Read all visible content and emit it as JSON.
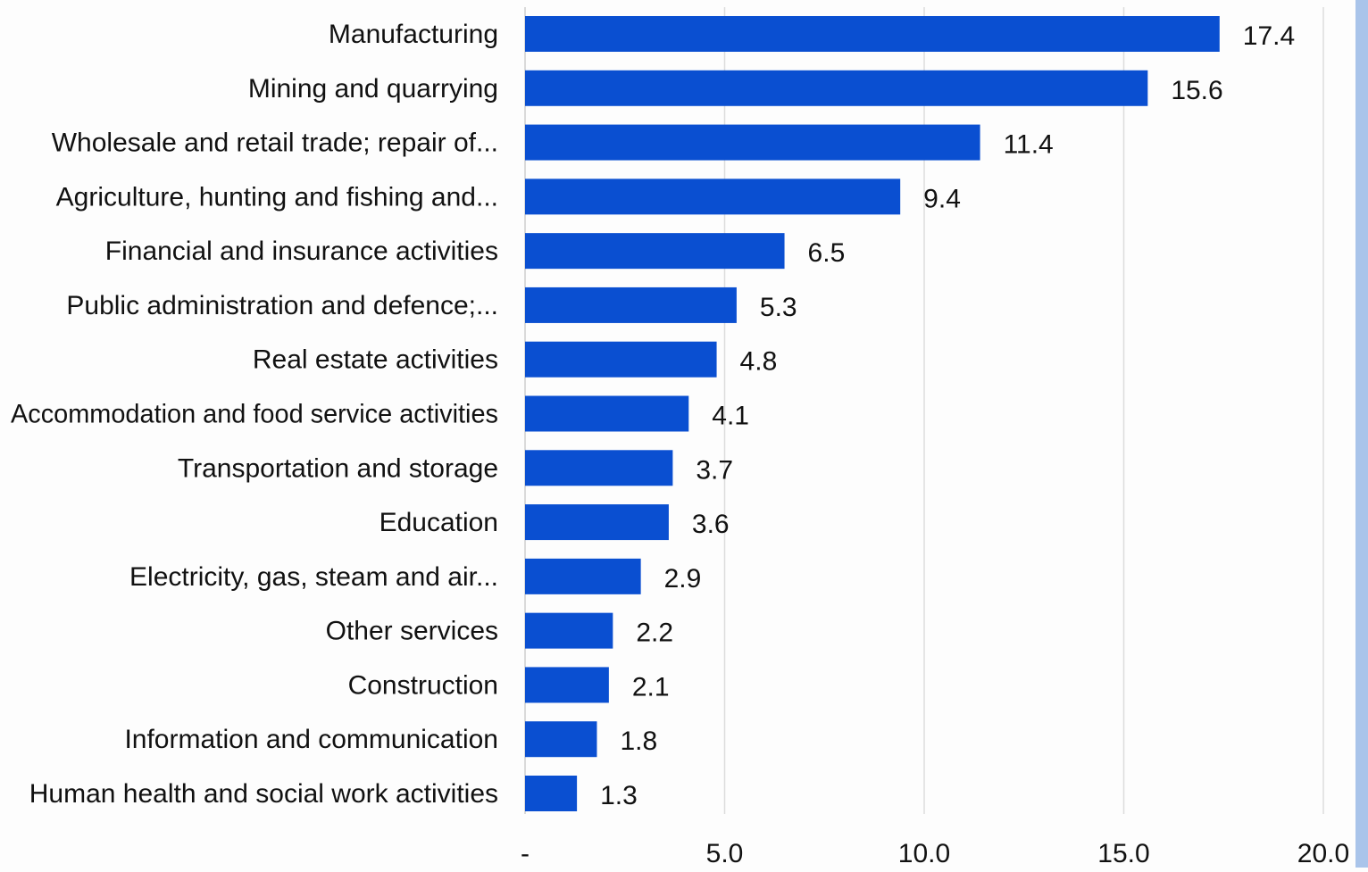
{
  "chart_data": {
    "type": "bar",
    "orientation": "horizontal",
    "categories": [
      "Manufacturing",
      "Mining and quarrying",
      "Wholesale and retail trade; repair of...",
      "Agriculture, hunting and fishing and...",
      "Financial and insurance activities",
      "Public administration and defence;...",
      "Real estate activities",
      "Accommodation and food service activities",
      "Transportation and storage",
      "Education",
      "Electricity, gas, steam and air...",
      "Other services",
      "Construction",
      "Information and communication",
      "Human health and social work activities"
    ],
    "values": [
      17.4,
      15.6,
      11.4,
      9.4,
      6.5,
      5.3,
      4.8,
      4.1,
      3.7,
      3.6,
      2.9,
      2.2,
      2.1,
      1.8,
      1.3
    ],
    "data_labels": [
      "17.4",
      "15.6",
      "11.4",
      "9.4",
      "6.5",
      "5.3",
      "4.8",
      "4.1",
      "3.7",
      "3.6",
      "2.9",
      "2.2",
      "2.1",
      "1.8",
      "1.3"
    ],
    "x_ticks": [
      0,
      5,
      10,
      15,
      20
    ],
    "x_tick_labels": [
      "-",
      "5.0",
      "10.0",
      "15.0",
      "20.0"
    ],
    "xlim": [
      0,
      20
    ],
    "title": "",
    "xlabel": "",
    "ylabel": "",
    "grid": "vertical",
    "legend": "none",
    "colors": {
      "bar": "#0a4fd1",
      "grid": "#dddddd",
      "text": "#111111",
      "right_strip": "#a9c4ea"
    }
  }
}
